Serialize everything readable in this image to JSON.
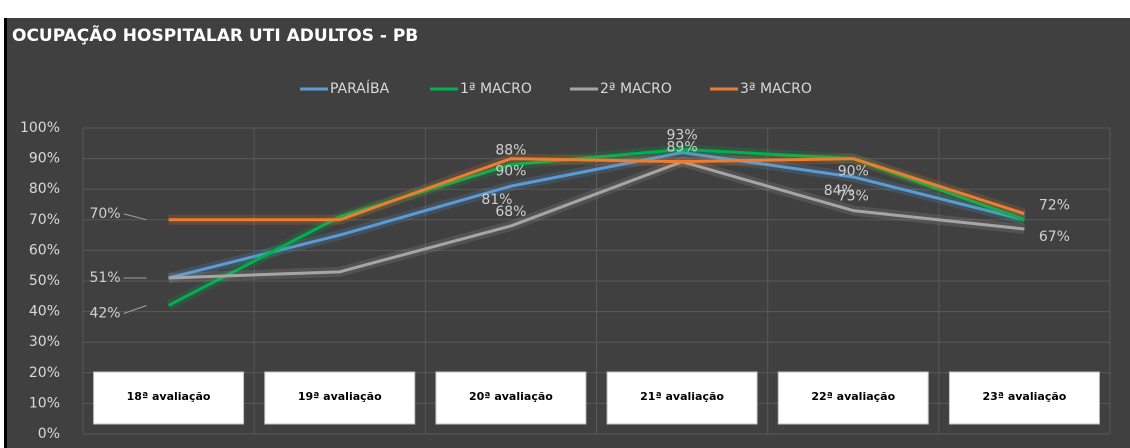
{
  "chart_data": {
    "type": "line",
    "title": "OCUPAÇÃO HOSPITALAR UTI ADULTOS - PB",
    "categories": [
      "18ª avaliação",
      "19ª avaliação",
      "20ª avaliação",
      "21ª avaliação",
      "22ª avaliação",
      "23ª avaliação"
    ],
    "series": [
      {
        "name": "PARAÍBA",
        "color": "#5b9bd5",
        "values": [
          51,
          65,
          81,
          92,
          84,
          70
        ],
        "value_labels": [
          null,
          null,
          "81%",
          null,
          "84%",
          null
        ]
      },
      {
        "name": "1ª MACRO",
        "color": "#00b050",
        "values": [
          42,
          71,
          88,
          93,
          90,
          70
        ],
        "value_labels": [
          "42%",
          null,
          "88%",
          "93%",
          null,
          null
        ]
      },
      {
        "name": "2ª MACRO",
        "color": "#a5a5a5",
        "values": [
          51,
          53,
          68,
          89,
          73,
          67
        ],
        "value_labels": [
          "51%",
          null,
          "68%",
          "89%",
          "73%",
          "67%"
        ]
      },
      {
        "name": "3ª MACRO",
        "color": "#ed7d31",
        "values": [
          70,
          70,
          90,
          89,
          90,
          72
        ],
        "value_labels": [
          "70%",
          null,
          "90%",
          null,
          "90%",
          "72%"
        ]
      }
    ],
    "ylim": [
      0,
      100
    ],
    "yticks": [
      {
        "value": 0,
        "label": "0%"
      },
      {
        "value": 10,
        "label": "10%"
      },
      {
        "value": 20,
        "label": "20%"
      },
      {
        "value": 30,
        "label": "30%"
      },
      {
        "value": 40,
        "label": "40%"
      },
      {
        "value": 50,
        "label": "50%"
      },
      {
        "value": 60,
        "label": "60%"
      },
      {
        "value": 70,
        "label": "70%"
      },
      {
        "value": 80,
        "label": "80%"
      },
      {
        "value": 90,
        "label": "90%"
      },
      {
        "value": 100,
        "label": "100%"
      }
    ],
    "grid": true
  }
}
